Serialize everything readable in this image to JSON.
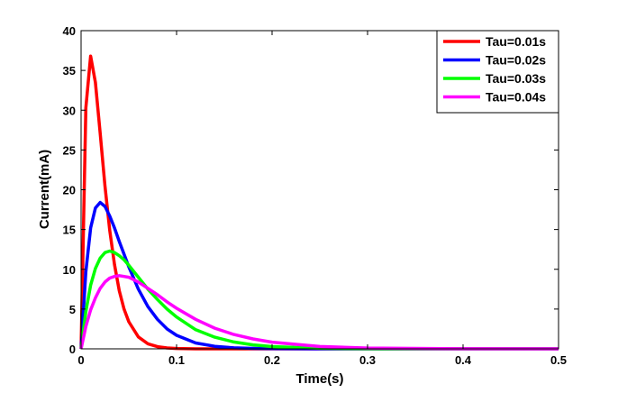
{
  "chart_data": {
    "type": "line",
    "title": "",
    "xlabel": "Time(s)",
    "ylabel": "Current(mA)",
    "xlim": [
      0,
      0.5
    ],
    "ylim": [
      0,
      40
    ],
    "xticks": [
      "0",
      "0.1",
      "0.2",
      "0.3",
      "0.4",
      "0.5"
    ],
    "yticks": [
      "0",
      "5",
      "10",
      "15",
      "20",
      "25",
      "30",
      "35",
      "40"
    ],
    "grid": false,
    "legend_position": "top-right",
    "x": [
      0,
      0.005,
      0.01,
      0.015,
      0.02,
      0.025,
      0.03,
      0.035,
      0.04,
      0.045,
      0.05,
      0.06,
      0.07,
      0.08,
      0.09,
      0.1,
      0.12,
      0.14,
      0.16,
      0.18,
      0.2,
      0.25,
      0.3,
      0.4,
      0.5
    ],
    "series": [
      {
        "name": "Tau=0.01s",
        "color": "#ff0000",
        "values": [
          0,
          30.3,
          36.8,
          33.5,
          27.1,
          20.5,
          14.9,
          10.6,
          7.3,
          5.0,
          3.4,
          1.5,
          0.64,
          0.27,
          0.11,
          0.05,
          0,
          0,
          0,
          0,
          0,
          0,
          0,
          0,
          0
        ]
      },
      {
        "name": "Tau=0.02s",
        "color": "#0000ff",
        "values": [
          0,
          9.7,
          15.2,
          17.7,
          18.4,
          17.9,
          16.7,
          15.2,
          13.5,
          11.9,
          10.3,
          7.5,
          5.3,
          3.7,
          2.5,
          1.7,
          0.74,
          0.32,
          0.13,
          0.06,
          0.02,
          0,
          0,
          0,
          0
        ]
      },
      {
        "name": "Tau=0.03s",
        "color": "#00ff00",
        "values": [
          0,
          4.7,
          8.0,
          10.1,
          11.4,
          12.1,
          12.3,
          12.1,
          11.7,
          11.2,
          10.5,
          9.0,
          7.5,
          6.2,
          5.0,
          4.0,
          2.4,
          1.46,
          0.86,
          0.5,
          0.28,
          0.07,
          0.02,
          0,
          0
        ]
      },
      {
        "name": "Tau=0.04s",
        "color": "#ff00ff",
        "values": [
          0,
          2.8,
          4.9,
          6.4,
          7.6,
          8.4,
          8.9,
          9.1,
          9.2,
          9.1,
          9.0,
          8.4,
          7.6,
          6.8,
          5.9,
          5.1,
          3.7,
          2.6,
          1.8,
          1.25,
          0.84,
          0.3,
          0.1,
          0.01,
          0
        ]
      }
    ]
  }
}
